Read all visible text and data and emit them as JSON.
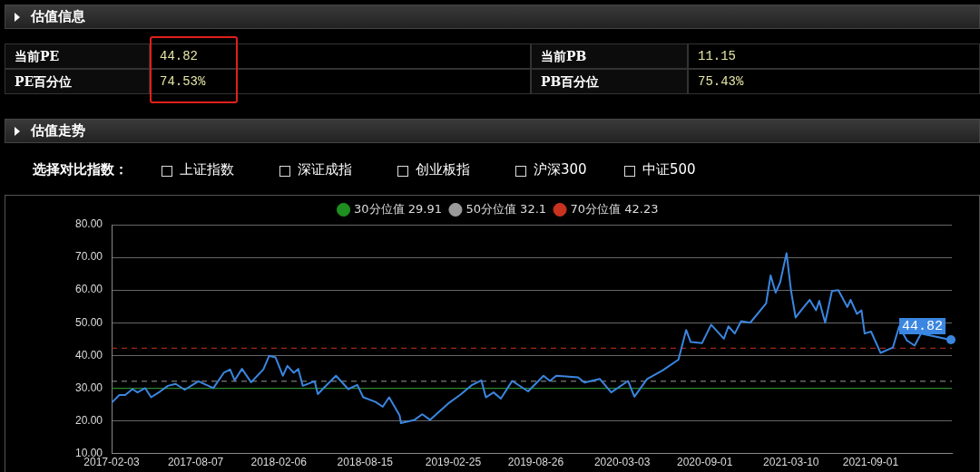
{
  "chart_data": {
    "type": "line",
    "annotations": [
      "估值信息",
      "当前PE",
      "44.82",
      "PE百分位",
      "74.53%",
      "当前PB",
      "11.15",
      "PB百分位",
      "75.43%",
      "估值走势",
      "选择对比指数：",
      "上证指数",
      "深证成指",
      "创业板指",
      "沪深300",
      "中证500",
      {
        "text": "44.82",
        "x": "2022-02-25",
        "y": 44.82
      }
    ],
    "x": [
      "2017-02-03",
      "2017-02-20",
      "2017-03-05",
      "2017-03-21",
      "2017-04-01",
      "2017-04-18",
      "2017-05-01",
      "2017-05-21",
      "2017-06-07",
      "2017-06-24",
      "2017-07-14",
      "2017-08-13",
      "2017-09-15",
      "2017-10-08",
      "2017-10-22",
      "2017-11-01",
      "2017-11-17",
      "2017-12-07",
      "2018-01-03",
      "2018-01-16",
      "2018-01-30",
      "2018-02-15",
      "2018-02-25",
      "2018-03-11",
      "2018-03-21",
      "2018-03-31",
      "2018-04-26",
      "2018-05-03",
      "2018-05-23",
      "2018-06-12",
      "2018-07-09",
      "2018-07-29",
      "2018-08-11",
      "2018-09-07",
      "2018-09-23",
      "2018-10-07",
      "2018-10-30",
      "2018-11-02",
      "2018-12-02",
      "2018-12-19",
      "2019-01-05",
      "2019-02-14",
      "2019-03-12",
      "2019-04-08",
      "2019-04-28",
      "2019-05-08",
      "2019-05-25",
      "2019-06-10",
      "2019-06-27",
      "2019-07-05",
      "2019-08-09",
      "2019-09-12",
      "2019-09-26",
      "2019-10-10",
      "2019-11-27",
      "2019-12-11",
      "2020-01-14",
      "2020-02-08",
      "2020-03-16",
      "2020-03-30",
      "2020-04-27",
      "2020-05-31",
      "2020-07-05",
      "2020-07-22",
      "2020-08-01",
      "2020-08-26",
      "2020-09-15",
      "2020-10-13",
      "2020-10-23",
      "2020-11-06",
      "2020-11-20",
      "2020-12-10",
      "2021-01-14",
      "2021-01-24",
      "2021-02-04",
      "2021-02-14",
      "2021-02-28",
      "2021-03-10",
      "2021-03-20",
      "2021-04-07",
      "2021-04-20",
      "2021-05-04",
      "2021-05-11",
      "2021-05-24",
      "2021-06-08",
      "2021-06-22",
      "2021-07-12",
      "2021-07-19",
      "2021-08-02",
      "2021-08-12",
      "2021-08-19",
      "2021-09-02",
      "2021-09-23",
      "2021-10-20",
      "2021-11-03",
      "2021-11-20",
      "2021-12-07",
      "2021-12-21",
      "2022-02-14",
      "2022-02-25"
    ],
    "series": [
      {
        "color": "#3a86e0",
        "values": [
          25.5,
          27.9,
          27.9,
          29.7,
          28.7,
          30,
          27.2,
          29,
          30.7,
          31.3,
          29.5,
          32.1,
          30,
          34.7,
          35.7,
          32.4,
          35.9,
          31.8,
          35.7,
          39.9,
          39.4,
          33.8,
          36.8,
          34.7,
          35.9,
          30.7,
          32.1,
          28.2,
          31,
          33.8,
          29.7,
          31,
          27.2,
          25.8,
          24.3,
          27.2,
          21.7,
          19.3,
          20.3,
          22,
          20.3,
          25.3,
          27.9,
          31,
          32.4,
          27.2,
          28.7,
          26.8,
          30.5,
          32.2,
          29,
          33.8,
          32.2,
          33.8,
          33.3,
          31.7,
          32.8,
          28.7,
          32.2,
          27.4,
          32.8,
          35.4,
          38.7,
          47.8,
          44.1,
          43.8,
          49.4,
          45.1,
          48.9,
          46.7,
          50.5,
          50,
          55.9,
          64.5,
          59.2,
          62.4,
          71.3,
          59.7,
          51.6,
          54.8,
          57,
          53.8,
          56.7,
          50,
          59.7,
          60,
          54.8,
          57,
          52.7,
          53.8,
          46.7,
          47.3,
          40.8,
          42.4,
          48.9,
          44.6,
          43,
          46.7,
          45.1,
          44.82
        ]
      }
    ],
    "xlim": [
      "2017-02-03",
      "2022-02-27"
    ],
    "xticks": [
      "2017-02-03",
      "2017-08-07",
      "2018-02-06",
      "2018-08-15",
      "2019-02-25",
      "2019-08-26",
      "2020-03-03",
      "2020-09-01",
      "2021-03-10",
      "2021-09-01"
    ],
    "ylim": [
      10,
      80
    ],
    "yticks": [
      {
        "value": 10,
        "label": "10.00"
      },
      {
        "value": 20,
        "label": "20.00"
      },
      {
        "value": 30,
        "label": "30.00"
      },
      {
        "value": 40,
        "label": "40.00"
      },
      {
        "value": 50,
        "label": "50.00"
      },
      {
        "value": 60,
        "label": "60.00"
      },
      {
        "value": 70,
        "label": "70.00"
      },
      {
        "value": 80,
        "label": "80.00"
      }
    ],
    "ref_lines": [
      {
        "axis": "y",
        "value": 29.91,
        "label": "30分位值 29.91",
        "color": "#1f8f1f",
        "line_style": "solid"
      },
      {
        "axis": "y",
        "value": 32.1,
        "label": "50分位值 32.1",
        "color": "#9a9a9a",
        "line_style": "dashed"
      },
      {
        "axis": "y",
        "value": 42.23,
        "label": "70分位值 42.23",
        "color": "#c8321e",
        "line_style": "dashed"
      }
    ],
    "grid": "y",
    "legend": "top"
  }
}
